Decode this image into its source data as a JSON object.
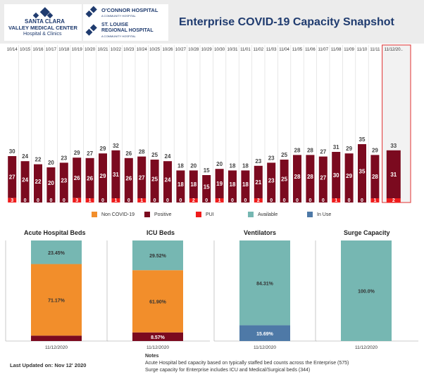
{
  "header": {
    "logo1_line1": "SANTA CLARA",
    "logo1_line2": "VALLEY MEDICAL CENTER",
    "logo1_line3": "Hospital & Clinics",
    "logo2_name": "O'CONNOR HOSPITAL",
    "logo2_sub": "A COMMUNITY HOSPITAL",
    "logo3_line1": "ST. LOUISE",
    "logo3_line2": "REGIONAL HOSPITAL",
    "logo3_sub": "A COMMUNITY HOSPITAL",
    "title": "Enterprise COVID-19 Capacity Snapshot",
    "brand_color": "#1f3b6f"
  },
  "colors": {
    "non_covid": "#f28e2b",
    "positive": "#7b0a1f",
    "pui": "#ef1c1c",
    "available": "#76b7b2",
    "in_use": "#4e79a7"
  },
  "legend": [
    {
      "label": "Non COVID-19",
      "color": "#f28e2b"
    },
    {
      "label": "Positive",
      "color": "#7b0a1f"
    },
    {
      "label": "PUI",
      "color": "#ef1c1c"
    },
    {
      "label": "Available",
      "color": "#76b7b2"
    },
    {
      "label": "In Use",
      "color": "#4e79a7"
    }
  ],
  "chart_data": [
    {
      "type": "bar",
      "stacked": true,
      "categories": [
        "10/14",
        "10/15",
        "10/16",
        "10/17",
        "10/18",
        "10/19",
        "10/20",
        "10/21",
        "10/22",
        "10/23",
        "10/24",
        "10/25",
        "10/26",
        "10/27",
        "10/28",
        "10/29",
        "10/30",
        "10/31",
        "11/01",
        "11/02",
        "11/03",
        "11/04",
        "11/05",
        "11/06",
        "11/07",
        "11/08",
        "11/09",
        "11/10",
        "11/11",
        "11/12/20.."
      ],
      "series": [
        {
          "name": "Positive",
          "values": [
            27,
            24,
            22,
            20,
            23,
            26,
            26,
            29,
            31,
            26,
            27,
            25,
            24,
            18,
            18,
            15,
            19,
            18,
            18,
            21,
            23,
            25,
            28,
            28,
            27,
            30,
            29,
            35,
            28,
            31
          ]
        },
        {
          "name": "PUI",
          "values": [
            3,
            0,
            0,
            0,
            0,
            3,
            1,
            0,
            1,
            0,
            1,
            0,
            0,
            0,
            2,
            0,
            1,
            0,
            0,
            2,
            0,
            0,
            0,
            0,
            0,
            1,
            0,
            0,
            1,
            2
          ]
        }
      ],
      "totals": [
        30,
        24,
        22,
        20,
        23,
        29,
        27,
        29,
        32,
        26,
        28,
        25,
        24,
        18,
        20,
        15,
        20,
        18,
        18,
        23,
        23,
        25,
        28,
        28,
        27,
        31,
        29,
        35,
        29,
        33
      ],
      "highlight_category": "11/12/20..",
      "ylim": [
        0,
        100
      ]
    },
    {
      "type": "bar",
      "stacked": true,
      "title": "Acute Hospital Beds",
      "categories": [
        "11/12/2020"
      ],
      "series": [
        {
          "name": "Positive",
          "values": [
            5.38
          ]
        },
        {
          "name": "Non COVID-19",
          "values": [
            71.17
          ]
        },
        {
          "name": "Available",
          "values": [
            23.45
          ]
        }
      ],
      "labels": [
        "",
        "71.17%",
        "23.45%"
      ],
      "ylim": [
        0,
        100
      ]
    },
    {
      "type": "bar",
      "stacked": true,
      "title": "ICU Beds",
      "categories": [
        "11/12/2020"
      ],
      "series": [
        {
          "name": "Positive",
          "values": [
            8.57
          ]
        },
        {
          "name": "Non COVID-19",
          "values": [
            61.9
          ]
        },
        {
          "name": "Available",
          "values": [
            29.52
          ]
        }
      ],
      "labels": [
        "8.57%",
        "61.90%",
        "29.52%"
      ],
      "ylim": [
        0,
        100
      ]
    },
    {
      "type": "bar",
      "stacked": true,
      "title": "Ventilators",
      "categories": [
        "11/12/2020"
      ],
      "series": [
        {
          "name": "In Use",
          "values": [
            15.69
          ]
        },
        {
          "name": "Available",
          "values": [
            84.31
          ]
        }
      ],
      "labels": [
        "15.69%",
        "84.31%"
      ],
      "ylim": [
        0,
        100
      ]
    },
    {
      "type": "bar",
      "stacked": true,
      "title": "Surge Capacity",
      "categories": [
        "11/12/2020"
      ],
      "series": [
        {
          "name": "Available",
          "values": [
            100.0
          ]
        }
      ],
      "labels": [
        "100.0%"
      ],
      "ylim": [
        0,
        100
      ]
    }
  ],
  "footer": {
    "last_updated": "Last Updated on:  Nov 12' 2020",
    "notes_title": "Notes",
    "note1": "Acute Hospital bed capacity based on typically staffed bed counts across the Enterprise (575)",
    "note2": "Surge capacity for Enterprise includes ICU and Medical/Surgical beds (344)"
  }
}
